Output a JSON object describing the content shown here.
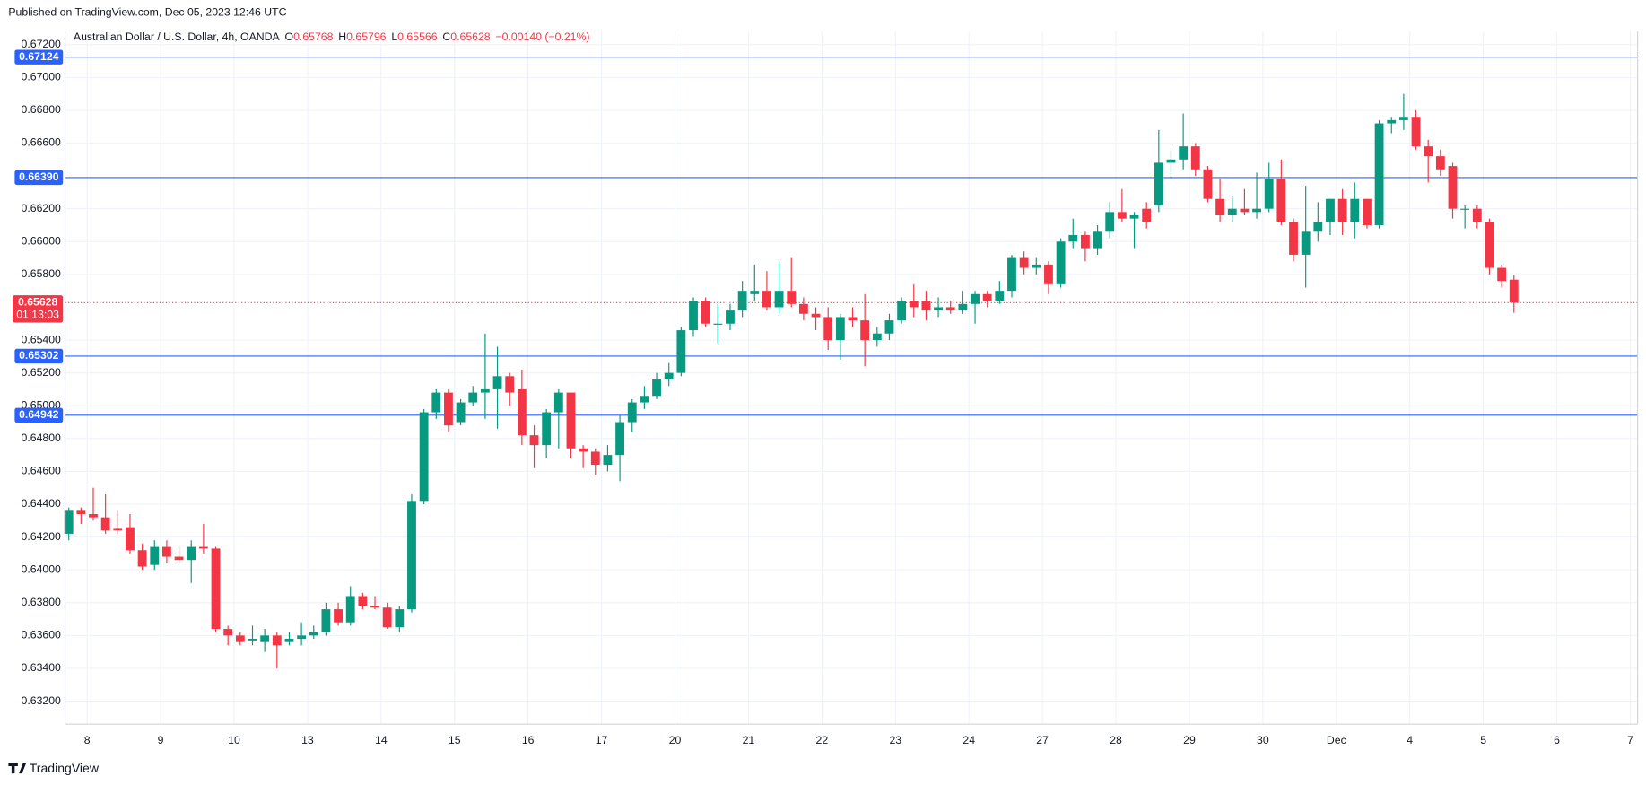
{
  "chart_data": {
    "type": "candlestick",
    "published": "Published on TradingView.com, Dec 05, 2023 12:46 UTC",
    "instrument": "Australian Dollar / U.S. Dollar, 4h, OANDA",
    "ohlc_legend": [
      {
        "label": "O",
        "value": "0.65768"
      },
      {
        "label": "H",
        "value": "0.65796"
      },
      {
        "label": "L",
        "value": "0.65566"
      },
      {
        "label": "C",
        "value": "0.65628"
      }
    ],
    "change": "−0.00140 (−0.21%)",
    "brand": "TradingView",
    "up_color": "#089981",
    "down_color": "#f23645",
    "level_color": "#2962ff",
    "grid": true,
    "ylim": [
      0.6306,
      0.6728
    ],
    "yticks": [
      {
        "value": 0.672,
        "label": "0.67200"
      },
      {
        "value": 0.67,
        "label": "0.67000"
      },
      {
        "value": 0.668,
        "label": "0.66800"
      },
      {
        "value": 0.666,
        "label": "0.66600"
      },
      {
        "value": 0.662,
        "label": "0.66200"
      },
      {
        "value": 0.66,
        "label": "0.66000"
      },
      {
        "value": 0.658,
        "label": "0.65800"
      },
      {
        "value": 0.654,
        "label": "0.65400"
      },
      {
        "value": 0.652,
        "label": "0.65200"
      },
      {
        "value": 0.65,
        "label": "0.65000"
      },
      {
        "value": 0.648,
        "label": "0.64800"
      },
      {
        "value": 0.646,
        "label": "0.64600"
      },
      {
        "value": 0.644,
        "label": "0.64400"
      },
      {
        "value": 0.642,
        "label": "0.64200"
      },
      {
        "value": 0.64,
        "label": "0.64000"
      },
      {
        "value": 0.638,
        "label": "0.63800"
      },
      {
        "value": 0.636,
        "label": "0.63600"
      },
      {
        "value": 0.634,
        "label": "0.63400"
      },
      {
        "value": 0.632,
        "label": "0.63200"
      }
    ],
    "x_labels": [
      "8",
      "9",
      "10",
      "13",
      "14",
      "15",
      "16",
      "17",
      "20",
      "21",
      "22",
      "23",
      "24",
      "27",
      "28",
      "29",
      "30",
      "Dec",
      "4",
      "5",
      "6",
      "7"
    ],
    "levels": [
      {
        "value": 0.67124,
        "label": "0.67124"
      },
      {
        "value": 0.6639,
        "label": "0.66390"
      },
      {
        "value": 0.65302,
        "label": "0.65302"
      },
      {
        "value": 0.64942,
        "label": "0.64942"
      }
    ],
    "last_price": {
      "value": 0.65628,
      "label": "0.65628",
      "countdown": "01:13:03"
    },
    "candles": [
      [
        0.6422,
        0.6438,
        0.6418,
        0.6436
      ],
      [
        0.6436,
        0.6438,
        0.6428,
        0.6434
      ],
      [
        0.6434,
        0.645,
        0.643,
        0.6432
      ],
      [
        0.6432,
        0.6446,
        0.6422,
        0.6424
      ],
      [
        0.6425,
        0.6436,
        0.6422,
        0.6424
      ],
      [
        0.6426,
        0.6434,
        0.641,
        0.6412
      ],
      [
        0.6412,
        0.6416,
        0.64,
        0.6402
      ],
      [
        0.6403,
        0.6418,
        0.64,
        0.6414
      ],
      [
        0.6414,
        0.6418,
        0.6404,
        0.6408
      ],
      [
        0.6408,
        0.6414,
        0.6404,
        0.6406
      ],
      [
        0.6406,
        0.6418,
        0.6392,
        0.6414
      ],
      [
        0.6414,
        0.6428,
        0.641,
        0.6413
      ],
      [
        0.6413,
        0.6414,
        0.6362,
        0.6364
      ],
      [
        0.6364,
        0.6366,
        0.6354,
        0.636
      ],
      [
        0.636,
        0.6362,
        0.6354,
        0.6356
      ],
      [
        0.6357,
        0.6366,
        0.6354,
        0.6358
      ],
      [
        0.6356,
        0.6364,
        0.635,
        0.636
      ],
      [
        0.636,
        0.6362,
        0.634,
        0.6354
      ],
      [
        0.6356,
        0.6362,
        0.6354,
        0.6358
      ],
      [
        0.6358,
        0.6368,
        0.6354,
        0.636
      ],
      [
        0.636,
        0.6366,
        0.6358,
        0.6362
      ],
      [
        0.6362,
        0.638,
        0.636,
        0.6376
      ],
      [
        0.6376,
        0.638,
        0.6366,
        0.6368
      ],
      [
        0.6368,
        0.639,
        0.6366,
        0.6384
      ],
      [
        0.6384,
        0.6386,
        0.6376,
        0.6378
      ],
      [
        0.6378,
        0.6384,
        0.6376,
        0.6377
      ],
      [
        0.6377,
        0.638,
        0.6364,
        0.6365
      ],
      [
        0.6365,
        0.6378,
        0.6362,
        0.6376
      ],
      [
        0.6376,
        0.6446,
        0.6374,
        0.6442
      ],
      [
        0.6442,
        0.6498,
        0.644,
        0.6496
      ],
      [
        0.6496,
        0.651,
        0.6492,
        0.6508
      ],
      [
        0.6508,
        0.651,
        0.6484,
        0.6488
      ],
      [
        0.649,
        0.6504,
        0.6488,
        0.6502
      ],
      [
        0.6502,
        0.6512,
        0.65,
        0.6508
      ],
      [
        0.6508,
        0.6544,
        0.6492,
        0.651
      ],
      [
        0.651,
        0.6536,
        0.6486,
        0.6518
      ],
      [
        0.6518,
        0.652,
        0.65,
        0.6508
      ],
      [
        0.651,
        0.6522,
        0.6476,
        0.6482
      ],
      [
        0.6482,
        0.6488,
        0.6462,
        0.6476
      ],
      [
        0.6476,
        0.6498,
        0.6468,
        0.6496
      ],
      [
        0.6496,
        0.651,
        0.6474,
        0.6508
      ],
      [
        0.6508,
        0.6508,
        0.6468,
        0.6474
      ],
      [
        0.6474,
        0.6476,
        0.6462,
        0.6472
      ],
      [
        0.6472,
        0.6474,
        0.6458,
        0.6464
      ],
      [
        0.6464,
        0.6476,
        0.646,
        0.647
      ],
      [
        0.647,
        0.6494,
        0.6454,
        0.649
      ],
      [
        0.649,
        0.6504,
        0.6484,
        0.6502
      ],
      [
        0.6502,
        0.6512,
        0.6498,
        0.6506
      ],
      [
        0.6506,
        0.652,
        0.6504,
        0.6516
      ],
      [
        0.6516,
        0.6526,
        0.6512,
        0.652
      ],
      [
        0.652,
        0.6548,
        0.6518,
        0.6546
      ],
      [
        0.6546,
        0.6566,
        0.6542,
        0.6564
      ],
      [
        0.6564,
        0.6566,
        0.6548,
        0.655
      ],
      [
        0.655,
        0.6562,
        0.6538,
        0.655
      ],
      [
        0.655,
        0.6562,
        0.6546,
        0.6558
      ],
      [
        0.6558,
        0.6576,
        0.6554,
        0.657
      ],
      [
        0.6568,
        0.6586,
        0.6564,
        0.657
      ],
      [
        0.657,
        0.6582,
        0.6558,
        0.656
      ],
      [
        0.656,
        0.6588,
        0.6556,
        0.657
      ],
      [
        0.657,
        0.659,
        0.656,
        0.6562
      ],
      [
        0.6562,
        0.6566,
        0.6552,
        0.6556
      ],
      [
        0.6556,
        0.656,
        0.6546,
        0.6554
      ],
      [
        0.6554,
        0.656,
        0.6534,
        0.654
      ],
      [
        0.654,
        0.6556,
        0.6528,
        0.6554
      ],
      [
        0.6554,
        0.656,
        0.6548,
        0.6552
      ],
      [
        0.6552,
        0.6568,
        0.6524,
        0.654
      ],
      [
        0.654,
        0.6548,
        0.6536,
        0.6544
      ],
      [
        0.6544,
        0.6556,
        0.654,
        0.6552
      ],
      [
        0.6552,
        0.6566,
        0.655,
        0.6564
      ],
      [
        0.6564,
        0.6574,
        0.6554,
        0.656
      ],
      [
        0.6564,
        0.657,
        0.6552,
        0.6558
      ],
      [
        0.6558,
        0.6566,
        0.6554,
        0.656
      ],
      [
        0.656,
        0.6564,
        0.6556,
        0.6558
      ],
      [
        0.6558,
        0.657,
        0.6556,
        0.6562
      ],
      [
        0.6562,
        0.657,
        0.655,
        0.6568
      ],
      [
        0.6568,
        0.657,
        0.656,
        0.6564
      ],
      [
        0.6564,
        0.6576,
        0.6562,
        0.657
      ],
      [
        0.657,
        0.6592,
        0.6566,
        0.659
      ],
      [
        0.659,
        0.6594,
        0.658,
        0.6584
      ],
      [
        0.6584,
        0.659,
        0.658,
        0.6586
      ],
      [
        0.6586,
        0.6588,
        0.6568,
        0.6574
      ],
      [
        0.6574,
        0.6602,
        0.6572,
        0.66
      ],
      [
        0.66,
        0.6614,
        0.6596,
        0.6604
      ],
      [
        0.6604,
        0.6606,
        0.6588,
        0.6596
      ],
      [
        0.6596,
        0.661,
        0.6592,
        0.6606
      ],
      [
        0.6606,
        0.6624,
        0.6602,
        0.6618
      ],
      [
        0.6618,
        0.6632,
        0.6612,
        0.6614
      ],
      [
        0.6614,
        0.6618,
        0.6596,
        0.6616
      ],
      [
        0.662,
        0.6624,
        0.6608,
        0.6612
      ],
      [
        0.6622,
        0.6668,
        0.6618,
        0.6648
      ],
      [
        0.6648,
        0.6656,
        0.6638,
        0.665
      ],
      [
        0.665,
        0.6678,
        0.6644,
        0.6658
      ],
      [
        0.6658,
        0.666,
        0.664,
        0.6644
      ],
      [
        0.6644,
        0.6646,
        0.6624,
        0.6626
      ],
      [
        0.6626,
        0.6638,
        0.6612,
        0.6616
      ],
      [
        0.6616,
        0.6628,
        0.6612,
        0.662
      ],
      [
        0.662,
        0.6632,
        0.6616,
        0.6618
      ],
      [
        0.6618,
        0.6642,
        0.6614,
        0.662
      ],
      [
        0.662,
        0.6648,
        0.6618,
        0.6638
      ],
      [
        0.6638,
        0.665,
        0.661,
        0.6612
      ],
      [
        0.6612,
        0.6614,
        0.6588,
        0.6592
      ],
      [
        0.6592,
        0.6634,
        0.6572,
        0.6606
      ],
      [
        0.6606,
        0.6624,
        0.66,
        0.6612
      ],
      [
        0.6612,
        0.6626,
        0.6604,
        0.6626
      ],
      [
        0.6626,
        0.6632,
        0.6604,
        0.6612
      ],
      [
        0.6612,
        0.6636,
        0.6602,
        0.6626
      ],
      [
        0.6626,
        0.6626,
        0.6608,
        0.661
      ],
      [
        0.661,
        0.6674,
        0.6608,
        0.6672
      ],
      [
        0.6672,
        0.6676,
        0.6666,
        0.6674
      ],
      [
        0.6674,
        0.669,
        0.6668,
        0.6676
      ],
      [
        0.6676,
        0.668,
        0.6656,
        0.6658
      ],
      [
        0.6658,
        0.6662,
        0.6636,
        0.6652
      ],
      [
        0.6652,
        0.6656,
        0.664,
        0.6644
      ],
      [
        0.6646,
        0.6648,
        0.6614,
        0.662
      ],
      [
        0.662,
        0.6622,
        0.6608,
        0.662
      ],
      [
        0.662,
        0.6622,
        0.6608,
        0.6612
      ],
      [
        0.6612,
        0.6614,
        0.658,
        0.6584
      ],
      [
        0.6584,
        0.6586,
        0.6572,
        0.6576
      ],
      [
        0.65768,
        0.65796,
        0.65566,
        0.65628
      ]
    ]
  }
}
